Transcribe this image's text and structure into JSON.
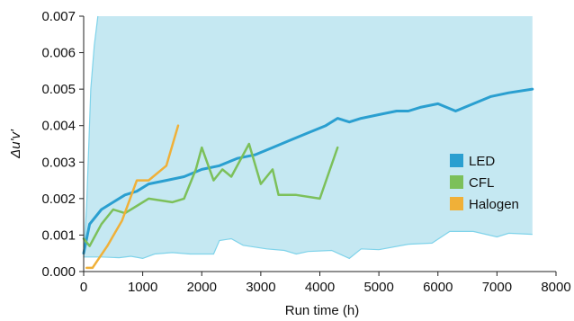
{
  "chart_data": {
    "type": "line",
    "title": "",
    "xlabel": "Run time (h)",
    "ylabel": "Δu'v'",
    "xlim": [
      0,
      8000
    ],
    "ylim": [
      0,
      0.007
    ],
    "x_ticks": [
      "0",
      "1000",
      "2000",
      "3000",
      "4000",
      "5000",
      "6000",
      "7000",
      "8000"
    ],
    "y_ticks": [
      "0.000",
      "0.001",
      "0.002",
      "0.003",
      "0.004",
      "0.005",
      "0.006",
      "0.007"
    ],
    "grid": false,
    "legend_position": "right",
    "band": {
      "color": "#c5e8f2",
      "edge_color": "#7fd3ea",
      "upper": [
        [
          0,
          0.0004
        ],
        [
          50,
          0.0018
        ],
        [
          120,
          0.005
        ],
        [
          180,
          0.0062
        ],
        [
          240,
          0.007
        ],
        [
          7600,
          0.007
        ],
        [
          7600,
          0.007
        ]
      ],
      "lower": [
        [
          0,
          0.0004
        ],
        [
          300,
          0.0004
        ],
        [
          600,
          0.00038
        ],
        [
          800,
          0.00042
        ],
        [
          1000,
          0.00036
        ],
        [
          1200,
          0.00048
        ],
        [
          1500,
          0.00052
        ],
        [
          1800,
          0.00048
        ],
        [
          2200,
          0.00048
        ],
        [
          2300,
          0.00085
        ],
        [
          2500,
          0.0009
        ],
        [
          2700,
          0.00072
        ],
        [
          3100,
          0.00062
        ],
        [
          3400,
          0.00058
        ],
        [
          3600,
          0.00048
        ],
        [
          3800,
          0.00055
        ],
        [
          4200,
          0.00058
        ],
        [
          4500,
          0.00036
        ],
        [
          4700,
          0.00062
        ],
        [
          5000,
          0.0006
        ],
        [
          5500,
          0.00075
        ],
        [
          5900,
          0.00078
        ],
        [
          6200,
          0.0011
        ],
        [
          6600,
          0.0011
        ],
        [
          7000,
          0.00095
        ],
        [
          7200,
          0.00105
        ],
        [
          7600,
          0.00102
        ]
      ]
    },
    "series": [
      {
        "name": "LED",
        "color": "#2a9fd0",
        "x": [
          0,
          100,
          300,
          500,
          700,
          900,
          1100,
          1400,
          1700,
          2000,
          2300,
          2600,
          2900,
          3200,
          3500,
          3800,
          4100,
          4300,
          4500,
          4700,
          5000,
          5300,
          5500,
          5700,
          6000,
          6300,
          6600,
          6900,
          7200,
          7600
        ],
        "y": [
          0.0005,
          0.0013,
          0.0017,
          0.0019,
          0.0021,
          0.0022,
          0.0024,
          0.0025,
          0.0026,
          0.0028,
          0.0029,
          0.0031,
          0.0032,
          0.0034,
          0.0036,
          0.0038,
          0.004,
          0.0042,
          0.0041,
          0.0042,
          0.0043,
          0.0044,
          0.0044,
          0.0045,
          0.0046,
          0.0044,
          0.0046,
          0.0048,
          0.0049,
          0.005
        ]
      },
      {
        "name": "CFL",
        "color": "#7cc05a",
        "x": [
          0,
          100,
          300,
          500,
          700,
          900,
          1100,
          1500,
          1700,
          1900,
          2000,
          2200,
          2350,
          2500,
          2800,
          3000,
          3200,
          3300,
          3600,
          4000,
          4300
        ],
        "y": [
          0.0009,
          0.0007,
          0.0013,
          0.0017,
          0.0016,
          0.0018,
          0.002,
          0.0019,
          0.002,
          0.0028,
          0.0034,
          0.0025,
          0.0028,
          0.0026,
          0.0035,
          0.0024,
          0.0028,
          0.0021,
          0.0021,
          0.002,
          0.0034
        ]
      },
      {
        "name": "Halogen",
        "color": "#f0b038",
        "x": [
          50,
          150,
          400,
          650,
          900,
          1100,
          1400,
          1600
        ],
        "y": [
          0.0001,
          0.0001,
          0.0007,
          0.0014,
          0.0025,
          0.0025,
          0.0029,
          0.004
        ]
      }
    ]
  }
}
